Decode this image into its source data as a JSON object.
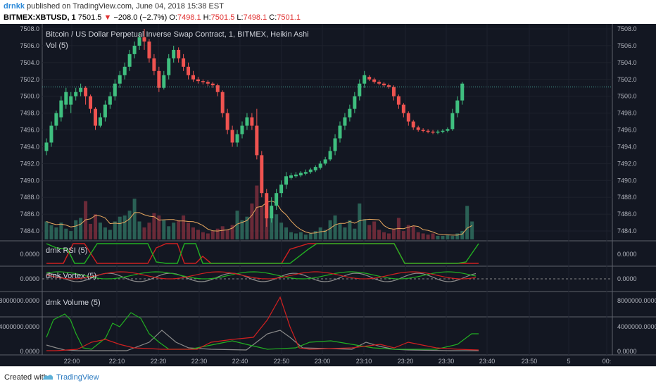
{
  "header": {
    "user": "drnkk",
    "published": "published on TradingView.com, June 04, 2018 15:38 EST",
    "symbol": "BITMEX:XBTUSD, 1",
    "last": "7501.5",
    "arrow": "▼",
    "change": "−208.0 (−2.7%)",
    "o_label": "O:",
    "o_val": "7498.1",
    "h_label": "H:",
    "h_val": "7501.5",
    "l_label": "L:",
    "l_val": "7498.1",
    "c_label": "C:",
    "c_val": "7501.1"
  },
  "legends": {
    "main": "Bitcoin / US Dollar Perpetual Inverse Swap Contract, 1, BITMEX, Heikin Ashi",
    "vol": "Vol (5)",
    "rsi": "drnk RSI (5)",
    "vortex": "drnk Vortex (5)",
    "volume": "drnk Volume (5)"
  },
  "footer": {
    "created": "Created with",
    "brand": "TradingView"
  },
  "colors": {
    "background": "#131722",
    "up": "#26a69a",
    "up_candle": "#3fbf7f",
    "down": "#ef5350",
    "green_line": "#22b022",
    "red_line": "#d02020",
    "grey_line": "#8a8a8a",
    "orange_line": "#e8a860",
    "last_price_line": "#4fb8a8"
  },
  "chart_data": {
    "type": "candlestick",
    "price_axis": {
      "ylim": [
        7483.5,
        7508.0
      ],
      "ticks": [
        "7508.0",
        "7506.0",
        "7504.0",
        "7502.0",
        "7500.0",
        "7498.0",
        "7496.0",
        "7494.0",
        "7492.0",
        "7490.0",
        "7488.0",
        "7486.0",
        "7484.0"
      ]
    },
    "x_ticks": [
      "22:00",
      "22:10",
      "22:20",
      "22:30",
      "22:40",
      "22:50",
      "23:00",
      "23:10",
      "23:20",
      "23:30",
      "23:40",
      "23:50",
      "5",
      "00:"
    ],
    "last_price": 7501.1,
    "candles": [
      {
        "o": 7493.5,
        "c": 7494.5,
        "h": 7495.0,
        "l": 7493.0
      },
      {
        "o": 7494.5,
        "c": 7496.5,
        "h": 7497.0,
        "l": 7494.0
      },
      {
        "o": 7496.5,
        "c": 7498.0,
        "h": 7498.3,
        "l": 7496.0
      },
      {
        "o": 7497.5,
        "c": 7499.5,
        "h": 7500.0,
        "l": 7497.0
      },
      {
        "o": 7499.0,
        "c": 7500.5,
        "h": 7501.0,
        "l": 7498.5
      },
      {
        "o": 7499.0,
        "c": 7500.0,
        "h": 7500.5,
        "l": 7498.0
      },
      {
        "o": 7500.0,
        "c": 7500.5,
        "h": 7501.0,
        "l": 7499.5
      },
      {
        "o": 7500.5,
        "c": 7501.0,
        "h": 7501.5,
        "l": 7500.0
      },
      {
        "o": 7501.0,
        "c": 7500.0,
        "h": 7501.2,
        "l": 7499.0
      },
      {
        "o": 7500.0,
        "c": 7498.5,
        "h": 7500.2,
        "l": 7498.0
      },
      {
        "o": 7498.5,
        "c": 7496.5,
        "h": 7498.7,
        "l": 7496.0
      },
      {
        "o": 7496.5,
        "c": 7497.5,
        "h": 7498.0,
        "l": 7496.3
      },
      {
        "o": 7497.5,
        "c": 7499.0,
        "h": 7499.5,
        "l": 7497.0
      },
      {
        "o": 7499.0,
        "c": 7500.0,
        "h": 7500.5,
        "l": 7498.5
      },
      {
        "o": 7500.0,
        "c": 7501.5,
        "h": 7502.0,
        "l": 7499.5
      },
      {
        "o": 7501.5,
        "c": 7502.5,
        "h": 7503.0,
        "l": 7501.0
      },
      {
        "o": 7502.5,
        "c": 7503.5,
        "h": 7504.0,
        "l": 7502.0
      },
      {
        "o": 7503.5,
        "c": 7505.0,
        "h": 7505.5,
        "l": 7503.0
      },
      {
        "o": 7505.0,
        "c": 7506.0,
        "h": 7506.5,
        "l": 7504.5
      },
      {
        "o": 7506.0,
        "c": 7507.0,
        "h": 7507.5,
        "l": 7505.5
      },
      {
        "o": 7507.0,
        "c": 7506.5,
        "h": 7508.0,
        "l": 7505.5
      },
      {
        "o": 7506.5,
        "c": 7504.5,
        "h": 7506.8,
        "l": 7504.0
      },
      {
        "o": 7504.5,
        "c": 7503.0,
        "h": 7505.0,
        "l": 7502.5
      },
      {
        "o": 7503.0,
        "c": 7501.0,
        "h": 7503.5,
        "l": 7500.5
      },
      {
        "o": 7501.0,
        "c": 7502.5,
        "h": 7503.0,
        "l": 7500.8
      },
      {
        "o": 7502.5,
        "c": 7504.5,
        "h": 7505.0,
        "l": 7502.0
      },
      {
        "o": 7504.5,
        "c": 7505.5,
        "h": 7506.0,
        "l": 7504.0
      },
      {
        "o": 7505.5,
        "c": 7504.5,
        "h": 7505.8,
        "l": 7504.0
      },
      {
        "o": 7504.5,
        "c": 7503.5,
        "h": 7505.0,
        "l": 7503.0
      },
      {
        "o": 7503.5,
        "c": 7502.5,
        "h": 7504.0,
        "l": 7502.0
      },
      {
        "o": 7502.5,
        "c": 7502.0,
        "h": 7503.0,
        "l": 7501.7
      },
      {
        "o": 7502.0,
        "c": 7501.8,
        "h": 7502.3,
        "l": 7501.5
      },
      {
        "o": 7501.8,
        "c": 7501.7,
        "h": 7502.0,
        "l": 7501.4
      },
      {
        "o": 7501.7,
        "c": 7501.5,
        "h": 7501.9,
        "l": 7501.2
      },
      {
        "o": 7501.5,
        "c": 7501.3,
        "h": 7501.7,
        "l": 7501.0
      },
      {
        "o": 7501.3,
        "c": 7500.5,
        "h": 7501.5,
        "l": 7500.0
      },
      {
        "o": 7500.5,
        "c": 7498.0,
        "h": 7500.7,
        "l": 7497.5
      },
      {
        "o": 7498.0,
        "c": 7496.0,
        "h": 7498.5,
        "l": 7495.5
      },
      {
        "o": 7496.0,
        "c": 7494.5,
        "h": 7496.5,
        "l": 7494.0
      },
      {
        "o": 7494.5,
        "c": 7495.5,
        "h": 7496.0,
        "l": 7494.0
      },
      {
        "o": 7495.5,
        "c": 7496.5,
        "h": 7497.0,
        "l": 7495.0
      },
      {
        "o": 7496.5,
        "c": 7497.5,
        "h": 7498.0,
        "l": 7496.0
      },
      {
        "o": 7497.5,
        "c": 7496.5,
        "h": 7498.0,
        "l": 7496.0
      },
      {
        "o": 7496.5,
        "c": 7493.0,
        "h": 7498.5,
        "l": 7492.5
      },
      {
        "o": 7493.0,
        "c": 7488.5,
        "h": 7493.5,
        "l": 7488.0
      },
      {
        "o": 7488.5,
        "c": 7485.5,
        "h": 7489.0,
        "l": 7484.5
      },
      {
        "o": 7485.5,
        "c": 7487.0,
        "h": 7488.0,
        "l": 7485.0
      },
      {
        "o": 7487.0,
        "c": 7488.5,
        "h": 7489.0,
        "l": 7486.5
      },
      {
        "o": 7488.5,
        "c": 7489.5,
        "h": 7490.0,
        "l": 7488.0
      },
      {
        "o": 7489.5,
        "c": 7490.5,
        "h": 7491.0,
        "l": 7489.0
      },
      {
        "o": 7490.3,
        "c": 7490.6,
        "h": 7490.9,
        "l": 7490.1
      },
      {
        "o": 7490.5,
        "c": 7490.7,
        "h": 7491.0,
        "l": 7490.3
      },
      {
        "o": 7490.6,
        "c": 7490.9,
        "h": 7491.1,
        "l": 7490.4
      },
      {
        "o": 7490.8,
        "c": 7491.0,
        "h": 7491.3,
        "l": 7490.6
      },
      {
        "o": 7491.0,
        "c": 7491.3,
        "h": 7491.5,
        "l": 7490.8
      },
      {
        "o": 7491.2,
        "c": 7491.6,
        "h": 7491.8,
        "l": 7491.0
      },
      {
        "o": 7491.5,
        "c": 7492.0,
        "h": 7492.3,
        "l": 7491.3
      },
      {
        "o": 7492.0,
        "c": 7492.5,
        "h": 7492.8,
        "l": 7491.8
      },
      {
        "o": 7492.5,
        "c": 7493.5,
        "h": 7494.0,
        "l": 7492.3
      },
      {
        "o": 7493.5,
        "c": 7495.0,
        "h": 7495.5,
        "l": 7493.0
      },
      {
        "o": 7495.0,
        "c": 7496.5,
        "h": 7497.0,
        "l": 7494.5
      },
      {
        "o": 7496.5,
        "c": 7497.5,
        "h": 7498.0,
        "l": 7496.0
      },
      {
        "o": 7497.5,
        "c": 7498.5,
        "h": 7499.0,
        "l": 7497.0
      },
      {
        "o": 7498.5,
        "c": 7500.0,
        "h": 7500.5,
        "l": 7498.0
      },
      {
        "o": 7500.0,
        "c": 7501.5,
        "h": 7502.0,
        "l": 7499.5
      },
      {
        "o": 7501.5,
        "c": 7502.5,
        "h": 7503.0,
        "l": 7501.0
      },
      {
        "o": 7502.3,
        "c": 7502.0,
        "h": 7502.5,
        "l": 7501.8
      },
      {
        "o": 7502.0,
        "c": 7501.7,
        "h": 7502.2,
        "l": 7501.5
      },
      {
        "o": 7501.7,
        "c": 7501.5,
        "h": 7501.9,
        "l": 7501.3
      },
      {
        "o": 7501.5,
        "c": 7501.3,
        "h": 7501.7,
        "l": 7501.1
      },
      {
        "o": 7501.3,
        "c": 7501.1,
        "h": 7501.5,
        "l": 7500.9
      },
      {
        "o": 7501.1,
        "c": 7500.0,
        "h": 7501.3,
        "l": 7499.5
      },
      {
        "o": 7500.0,
        "c": 7499.0,
        "h": 7500.2,
        "l": 7498.5
      },
      {
        "o": 7499.0,
        "c": 7498.0,
        "h": 7499.2,
        "l": 7497.5
      },
      {
        "o": 7498.0,
        "c": 7497.0,
        "h": 7498.2,
        "l": 7496.5
      },
      {
        "o": 7497.0,
        "c": 7496.3,
        "h": 7497.2,
        "l": 7496.0
      },
      {
        "o": 7496.3,
        "c": 7496.0,
        "h": 7496.5,
        "l": 7495.8
      },
      {
        "o": 7496.0,
        "c": 7495.9,
        "h": 7496.2,
        "l": 7495.7
      },
      {
        "o": 7495.9,
        "c": 7495.8,
        "h": 7496.1,
        "l": 7495.6
      },
      {
        "o": 7495.8,
        "c": 7495.7,
        "h": 7496.0,
        "l": 7495.5
      },
      {
        "o": 7495.7,
        "c": 7495.8,
        "h": 7496.0,
        "l": 7495.5
      },
      {
        "o": 7495.8,
        "c": 7495.9,
        "h": 7496.1,
        "l": 7495.6
      },
      {
        "o": 7495.9,
        "c": 7496.1,
        "h": 7496.3,
        "l": 7495.7
      },
      {
        "o": 7496.1,
        "c": 7498.0,
        "h": 7498.5,
        "l": 7495.9
      },
      {
        "o": 7498.0,
        "c": 7499.5,
        "h": 7500.0,
        "l": 7497.5
      },
      {
        "o": 7499.5,
        "c": 7501.5,
        "h": 7501.7,
        "l": 7499.0
      }
    ],
    "volume_bars": [
      1.5,
      1.2,
      1.0,
      1.4,
      0.9,
      0.7,
      1.6,
      1.8,
      3.2,
      1.3,
      2.1,
      1.4,
      1.0,
      0.8,
      1.5,
      1.9,
      2.0,
      2.4,
      3.4,
      1.5,
      1.0,
      1.4,
      2.2,
      2.0,
      1.6,
      1.1,
      1.4,
      1.6,
      2.0,
      1.4,
      1.0,
      0.8,
      0.6,
      0.5,
      0.7,
      0.9,
      1.1,
      0.8,
      1.2,
      2.4,
      1.6,
      1.9,
      3.0,
      4.5,
      2.8,
      3.2,
      2.6,
      2.1,
      1.4,
      1.0,
      0.6,
      0.5,
      0.6,
      0.4,
      0.5,
      0.7,
      1.0,
      0.8,
      1.6,
      2.0,
      1.3,
      1.0,
      1.6,
      0.9,
      3.0,
      1.7,
      1.2,
      1.5,
      0.8,
      0.6,
      0.5,
      0.9,
      1.8,
      0.7,
      1.2,
      1.1,
      0.6,
      0.5,
      0.4,
      0.5,
      0.3,
      0.3,
      0.4,
      0.3,
      0.5,
      0.7,
      2.8,
      1.5
    ],
    "rsi": {
      "value_label": "0.0000"
    },
    "vortex": {
      "value_label": "0.0000"
    },
    "volume_pane": {
      "ticks": [
        "8000000.0000",
        "4000000.0000",
        "0.0000"
      ]
    }
  }
}
